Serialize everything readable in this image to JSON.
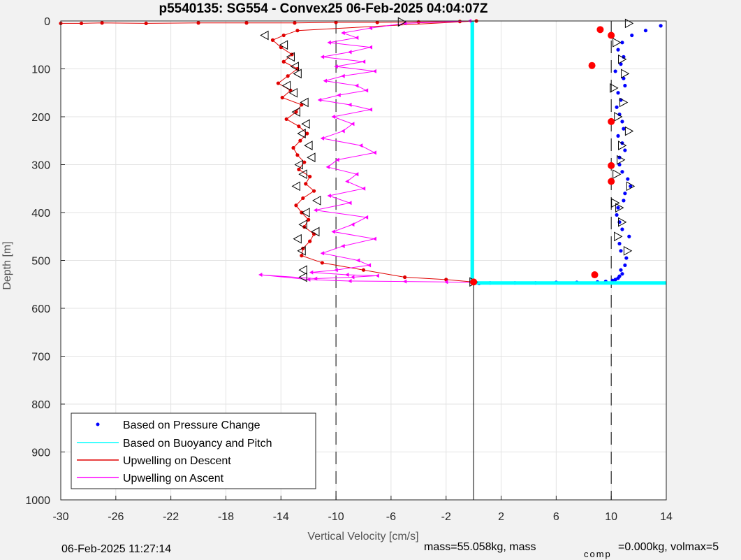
{
  "chart_data": {
    "type": "scatter",
    "title": "p5540135: SG554 - Convex25 06-Feb-2025 04:04:07Z",
    "xlabel": "Vertical Velocity [cm/s]",
    "ylabel": "Depth [m]",
    "xlim": [
      -30,
      14
    ],
    "ylim": [
      0,
      1000
    ],
    "y_direction": "reverse",
    "xticks": [
      "-30",
      "-26",
      "-22",
      "-18",
      "-14",
      "-10",
      "-6",
      "-2",
      "2",
      "6",
      "10",
      "14"
    ],
    "yticks": [
      "0",
      "100",
      "200",
      "300",
      "400",
      "500",
      "600",
      "700",
      "800",
      "900",
      "1000"
    ],
    "grid": true,
    "legend_position": "bottom-left",
    "reference_lines_x": [
      -10,
      0,
      10
    ],
    "series": [
      {
        "name": "Based on Pressure Change",
        "color": "#0000ff",
        "marker": "dot",
        "x": [
          13.6,
          12.5,
          11.5,
          10.8,
          10.5,
          10.9,
          10.7,
          10.3,
          10.9,
          11.0,
          10.5,
          10.7,
          10.4,
          10.6,
          10.8,
          10.9,
          10.5,
          10.8,
          11.0,
          10.6,
          10.6,
          10.8,
          11.2,
          11.4,
          11.0,
          10.9,
          10.5,
          10.4,
          10.6,
          10.8,
          11.3,
          10.6,
          10.7,
          11.1,
          11.0,
          10.7,
          10.8,
          10.6,
          10.5,
          10.3,
          10.1,
          9.6,
          9.0,
          7.5,
          6.0,
          4.5,
          3.0,
          1.2,
          0.4
        ],
        "y": [
          10,
          20,
          30,
          45,
          60,
          75,
          90,
          105,
          120,
          135,
          150,
          165,
          180,
          195,
          210,
          225,
          240,
          255,
          270,
          285,
          300,
          315,
          330,
          345,
          360,
          375,
          390,
          405,
          420,
          435,
          450,
          465,
          480,
          495,
          510,
          520,
          528,
          533,
          537,
          540,
          542,
          544,
          545,
          546,
          546,
          547,
          547,
          547,
          548
        ]
      },
      {
        "name": "Based on Buoyancy and Pitch",
        "color": "#00ffff",
        "marker": "line",
        "x": [
          -0.1,
          -0.1,
          -0.1,
          0.0,
          14
        ],
        "y": [
          0,
          300,
          545,
          547,
          547
        ]
      },
      {
        "name": "Upwelling on Descent",
        "color": "#e00000",
        "marker": "dot-line",
        "x": [
          -30,
          -28.5,
          -27,
          -23.8,
          -20,
          -16.5,
          -13,
          -10,
          -7,
          -4,
          -1,
          0.2,
          -12.8,
          -13.8,
          -14.6,
          -14.0,
          -13.2,
          -13.8,
          -12.8,
          -13.5,
          -14.2,
          -13.3,
          -13.9,
          -12.5,
          -12.9,
          -13.6,
          -12.7,
          -12.1,
          -12.6,
          -13.1,
          -12.8,
          -12.3,
          -12.7,
          -11.9,
          -12.2,
          -11.6,
          -12.4,
          -12.9,
          -12.5,
          -12.0,
          -12.3,
          -11.6,
          -11.9,
          -12.4,
          -12.5,
          -11.0,
          -8.0,
          -5.0,
          -2.0,
          0.0
        ],
        "y": [
          5,
          5,
          4,
          5,
          4,
          4,
          4,
          3,
          3,
          2,
          1,
          0,
          20,
          30,
          40,
          55,
          70,
          85,
          100,
          115,
          130,
          145,
          160,
          175,
          190,
          205,
          220,
          235,
          250,
          265,
          280,
          295,
          310,
          325,
          340,
          355,
          370,
          385,
          400,
          415,
          430,
          445,
          460,
          475,
          490,
          505,
          520,
          535,
          540,
          545
        ]
      },
      {
        "name": "Upwelling on Ascent",
        "color": "#ff00ff",
        "marker": "triangle-line",
        "x": [
          -0.3,
          -5.0,
          -7.5,
          -9.5,
          -8.5,
          -10.5,
          -7.5,
          -9.0,
          -11.0,
          -8.0,
          -10.0,
          -7.2,
          -9.5,
          -10.8,
          -8.5,
          -7.8,
          -9.8,
          -11.2,
          -9.0,
          -7.5,
          -10.2,
          -8.8,
          -9.5,
          -11.0,
          -8.2,
          -7.2,
          -9.9,
          -10.6,
          -8.5,
          -9.2,
          -8.0,
          -10.5,
          -9.0,
          -11.5,
          -7.8,
          -8.8,
          -10.2,
          -7.2,
          -9.5,
          -11.0,
          -8.4,
          -7.6,
          -10.0,
          -11.8,
          -9.2,
          -7.0,
          -8.8,
          -11.5,
          -15.5,
          -12.0,
          -9.0,
          -5.0,
          -2.0,
          0.0
        ],
        "y": [
          0,
          5,
          15,
          25,
          35,
          45,
          55,
          65,
          75,
          85,
          95,
          105,
          115,
          125,
          135,
          145,
          155,
          165,
          175,
          185,
          200,
          215,
          230,
          245,
          260,
          275,
          290,
          305,
          320,
          335,
          350,
          365,
          380,
          395,
          410,
          425,
          440,
          455,
          470,
          485,
          500,
          510,
          520,
          525,
          530,
          532,
          535,
          538,
          530,
          540,
          543,
          544,
          545,
          546
        ]
      }
    ],
    "markers": {
      "open_triangles_velocity": {
        "x": [
          -5.2,
          11.3,
          10.4,
          10.8,
          11.0,
          10.2,
          10.9,
          10.5,
          11.3,
          10.8,
          10.7,
          10.4,
          11.4,
          10.3,
          10.6,
          10.8,
          10.5,
          11.2,
          0.0
        ],
        "y": [
          2,
          5,
          45,
          80,
          110,
          140,
          170,
          200,
          230,
          260,
          290,
          320,
          345,
          380,
          390,
          420,
          450,
          480,
          545
        ]
      },
      "open_triangles_descent": {
        "x": [
          -15.2,
          -13.8,
          -13.3,
          -13.0,
          -12.8,
          -13.6,
          -13.1,
          -12.3,
          -12.9,
          -12.2,
          -12.5,
          -12.0,
          -11.8,
          -12.7,
          -12.4,
          -12.9,
          -11.4,
          -12.2,
          -12.4,
          -11.5,
          -12.8,
          -12.5,
          -12.4,
          -12.4
        ],
        "y": [
          30,
          50,
          75,
          95,
          110,
          135,
          150,
          170,
          190,
          215,
          235,
          260,
          285,
          300,
          320,
          345,
          375,
          400,
          425,
          440,
          455,
          480,
          520,
          535
        ]
      },
      "red_dots_velocity": {
        "x": [
          9.2,
          10.0,
          8.6,
          10.0,
          10.0,
          10.0,
          8.8,
          0.0
        ],
        "y": [
          18,
          30,
          93,
          210,
          302,
          335,
          530,
          545
        ]
      }
    }
  },
  "legend": [
    "Based on Pressure Change",
    "Based on Buoyancy and Pitch",
    "Upwelling on Descent",
    "Upwelling on Ascent"
  ],
  "footer": {
    "timestamp": "06-Feb-2025 11:27:14",
    "mass_text": "mass=55.058kg, mass",
    "subscript": "comp",
    "rest_text": "=0.000kg, volmax=5"
  }
}
